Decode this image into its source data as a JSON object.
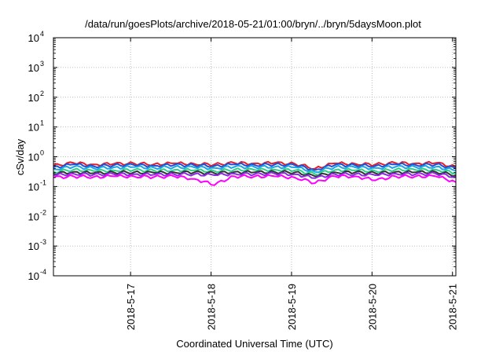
{
  "chart_data": {
    "type": "line",
    "title": "/data/run/goesPlots/archive/2018-05-21/01:00/bryn/../bryn/5daysMoon.plot",
    "xlabel": "Coordinated Universal Time (UTC)",
    "ylabel": "cSv/day",
    "yscale": "log",
    "ylim": [
      0.0001,
      10000
    ],
    "xlim": [
      "2018-05-16 01:00",
      "2018-05-21 01:00"
    ],
    "y_ticks": [
      {
        "base": "10",
        "exp": "-4",
        "value": 0.0001
      },
      {
        "base": "10",
        "exp": "-3",
        "value": 0.001
      },
      {
        "base": "10",
        "exp": "-2",
        "value": 0.01
      },
      {
        "base": "10",
        "exp": "-1",
        "value": 0.1
      },
      {
        "base": "10",
        "exp": "0",
        "value": 1
      },
      {
        "base": "10",
        "exp": "1",
        "value": 10
      },
      {
        "base": "10",
        "exp": "2",
        "value": 100
      },
      {
        "base": "10",
        "exp": "3",
        "value": 1000
      },
      {
        "base": "10",
        "exp": "4",
        "value": 10000
      }
    ],
    "x_ticks": [
      {
        "label": "2018-5-17",
        "value": "2018-05-17 00:00"
      },
      {
        "label": "2018-5-18",
        "value": "2018-05-18 00:00"
      },
      {
        "label": "2018-5-19",
        "value": "2018-05-19 00:00"
      },
      {
        "label": "2018-5-20",
        "value": "2018-05-20 00:00"
      },
      {
        "label": "2018-5-21",
        "value": "2018-05-21 00:00"
      }
    ],
    "grid": true,
    "x": [
      "2018-05-16 01:00",
      "2018-05-16 07:00",
      "2018-05-16 13:00",
      "2018-05-16 19:00",
      "2018-05-17 01:00",
      "2018-05-17 07:00",
      "2018-05-17 13:00",
      "2018-05-17 19:00",
      "2018-05-18 01:00",
      "2018-05-18 07:00",
      "2018-05-18 13:00",
      "2018-05-18 19:00",
      "2018-05-19 01:00",
      "2018-05-19 07:00",
      "2018-05-19 13:00",
      "2018-05-19 19:00",
      "2018-05-20 01:00",
      "2018-05-20 07:00",
      "2018-05-20 13:00",
      "2018-05-20 19:00",
      "2018-05-21 01:00"
    ],
    "series": [
      {
        "color": "#e0202a",
        "values": [
          0.5,
          0.62,
          0.55,
          0.58,
          0.6,
          0.56,
          0.6,
          0.58,
          0.55,
          0.62,
          0.6,
          0.62,
          0.58,
          0.4,
          0.6,
          0.58,
          0.55,
          0.62,
          0.6,
          0.62,
          0.45
        ]
      },
      {
        "color": "#1f4fd6",
        "values": [
          0.44,
          0.55,
          0.48,
          0.52,
          0.53,
          0.5,
          0.53,
          0.52,
          0.49,
          0.55,
          0.53,
          0.55,
          0.52,
          0.36,
          0.53,
          0.52,
          0.49,
          0.55,
          0.53,
          0.55,
          0.4
        ]
      },
      {
        "color": "#1aa6e6",
        "values": [
          0.38,
          0.46,
          0.41,
          0.44,
          0.45,
          0.43,
          0.45,
          0.44,
          0.42,
          0.46,
          0.45,
          0.46,
          0.44,
          0.31,
          0.45,
          0.44,
          0.42,
          0.46,
          0.45,
          0.46,
          0.34
        ]
      },
      {
        "color": "#2fd08a",
        "values": [
          0.31,
          0.37,
          0.33,
          0.35,
          0.36,
          0.34,
          0.36,
          0.35,
          0.33,
          0.37,
          0.36,
          0.37,
          0.35,
          0.26,
          0.36,
          0.35,
          0.33,
          0.37,
          0.36,
          0.37,
          0.28
        ]
      },
      {
        "color": "#333333",
        "values": [
          0.27,
          0.31,
          0.28,
          0.3,
          0.3,
          0.29,
          0.3,
          0.3,
          0.28,
          0.31,
          0.3,
          0.31,
          0.3,
          0.22,
          0.3,
          0.3,
          0.28,
          0.31,
          0.3,
          0.31,
          0.24
        ]
      },
      {
        "color": "#8a2be2",
        "values": [
          0.24,
          0.27,
          0.25,
          0.26,
          0.26,
          0.25,
          0.26,
          0.26,
          0.24,
          0.27,
          0.26,
          0.27,
          0.26,
          0.19,
          0.26,
          0.26,
          0.24,
          0.27,
          0.26,
          0.27,
          0.21
        ]
      },
      {
        "color": "#ff00ff",
        "values": [
          0.2,
          0.22,
          0.21,
          0.22,
          0.22,
          0.21,
          0.22,
          0.18,
          0.11,
          0.22,
          0.22,
          0.22,
          0.2,
          0.13,
          0.22,
          0.22,
          0.16,
          0.22,
          0.22,
          0.22,
          0.14
        ]
      }
    ]
  }
}
